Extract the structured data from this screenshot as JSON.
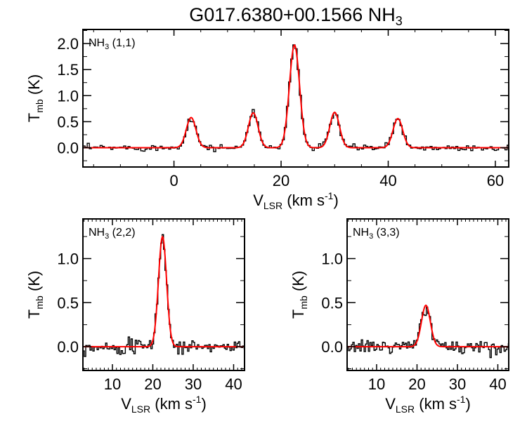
{
  "chart_data": {
    "title": "G017.6380+00.1566 NH",
    "title_sub": "3",
    "colors": {
      "spectrum": "#000000",
      "fit": "#ff0000",
      "frame": "#000000"
    },
    "panels": [
      {
        "type": "line",
        "label": "NH",
        "label_sub": "3",
        "label_rest": " (1,1)",
        "xlabel": "V",
        "xlabel_sub": "LSR",
        "xlabel_rest": " (km s",
        "xlabel_sup": "-1",
        "xlabel_end": ")",
        "ylabel": "T",
        "ylabel_sub": "mb",
        "ylabel_rest": " (K)",
        "xlim": [
          -17,
          62.5
        ],
        "ylim": [
          -0.37,
          2.27
        ],
        "xticks": [
          0,
          20,
          40,
          60
        ],
        "xtick_labels": [
          "0",
          "20",
          "40",
          "60"
        ],
        "yticks": [
          0.0,
          0.5,
          1.0,
          1.5,
          2.0
        ],
        "ytick_labels": [
          "0.0",
          "0.5",
          "1.0",
          "1.5",
          "2.0"
        ],
        "fit_components": [
          {
            "center": 3.2,
            "amplitude": 0.58,
            "sigma": 0.9
          },
          {
            "center": 14.8,
            "amplitude": 0.67,
            "sigma": 0.9
          },
          {
            "center": 22.5,
            "amplitude": 1.97,
            "sigma": 0.95
          },
          {
            "center": 30.0,
            "amplitude": 0.68,
            "sigma": 0.9
          },
          {
            "center": 41.8,
            "amplitude": 0.56,
            "sigma": 0.9
          }
        ],
        "channel_width": 0.4,
        "noise_rms": 0.03
      },
      {
        "type": "line",
        "label": "NH",
        "label_sub": "3",
        "label_rest": " (2,2)",
        "xlabel": "V",
        "xlabel_sub": "LSR",
        "xlabel_rest": " (km s",
        "xlabel_sup": "-1",
        "xlabel_end": ")",
        "ylabel": "T",
        "ylabel_sub": "mb",
        "ylabel_rest": " (K)",
        "xlim": [
          2.7,
          42.7
        ],
        "ylim": [
          -0.27,
          1.45
        ],
        "xticks": [
          10,
          20,
          30,
          40
        ],
        "xtick_labels": [
          "10",
          "20",
          "30",
          "40"
        ],
        "yticks": [
          0.0,
          0.5,
          1.0
        ],
        "ytick_labels": [
          "0.0",
          "0.5",
          "1.0"
        ],
        "fit_components": [
          {
            "center": 22.4,
            "amplitude": 1.25,
            "sigma": 1.0
          }
        ],
        "channel_width": 0.35,
        "noise_rms": 0.04
      },
      {
        "type": "line",
        "label": "NH",
        "label_sub": "3",
        "label_rest": " (3,3)",
        "xlabel": "V",
        "xlabel_sub": "LSR",
        "xlabel_rest": " (km s",
        "xlabel_sup": "-1",
        "xlabel_end": ")",
        "ylabel": "T",
        "ylabel_sub": "mb",
        "ylabel_rest": " (K)",
        "xlim": [
          2.7,
          42.7
        ],
        "ylim": [
          -0.27,
          1.45
        ],
        "xticks": [
          10,
          20,
          30,
          40
        ],
        "xtick_labels": [
          "10",
          "20",
          "30",
          "40"
        ],
        "yticks": [
          0.0,
          0.5,
          1.0
        ],
        "ytick_labels": [
          "0.0",
          "0.5",
          "1.0"
        ],
        "fit_components": [
          {
            "center": 22.2,
            "amplitude": 0.47,
            "sigma": 1.1
          }
        ],
        "channel_width": 0.35,
        "noise_rms": 0.04
      }
    ]
  }
}
